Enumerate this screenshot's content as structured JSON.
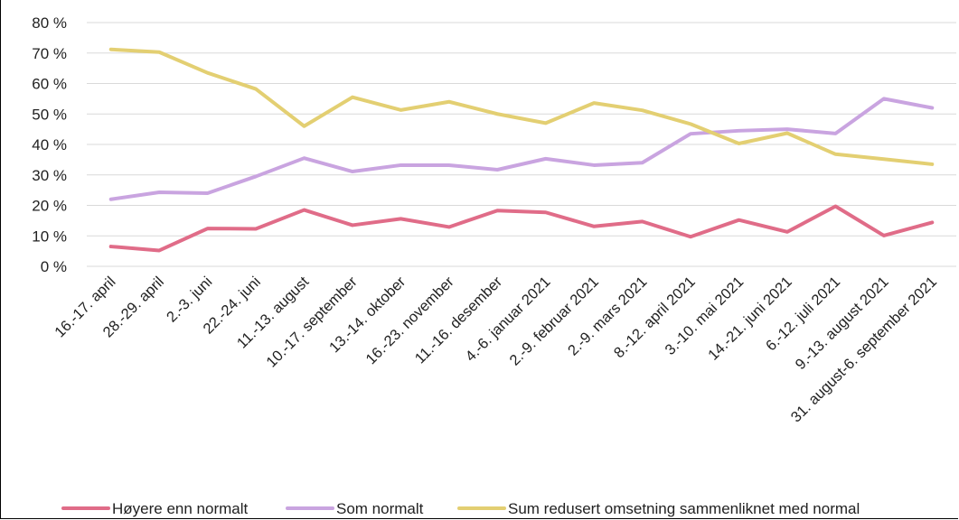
{
  "chart_data": {
    "type": "line",
    "title": "",
    "xlabel": "",
    "ylabel": "",
    "ylim": [
      0,
      80
    ],
    "yticks": [
      "0 %",
      "10 %",
      "20 %",
      "30 %",
      "40 %",
      "50 %",
      "60 %",
      "70 %",
      "80 %"
    ],
    "grid": true,
    "legend_position": "bottom",
    "categories": [
      "16.-17. april",
      "28.-29. april",
      "2.-3. juni",
      "22.-24. juni",
      "11.-13. august",
      "10.-17. september",
      "13.-14. oktober",
      "16.-23. november",
      "11.-16. desember",
      "4.-6. januar 2021",
      "2.-9. februar 2021",
      "2.-9. mars 2021",
      "8.-12. april 2021",
      "3.-10. mai 2021",
      "14.-21. juni 2021",
      "6.-12. juli 2021",
      "9.-13. august 2021",
      "31. august-6. september 2021"
    ],
    "series": [
      {
        "name": "Høyere enn normalt",
        "color": "#e06c88",
        "values": [
          6.5,
          5.2,
          12.4,
          12.3,
          18.5,
          13.5,
          15.6,
          12.9,
          18.3,
          17.7,
          13.1,
          14.7,
          9.7,
          15.2,
          11.3,
          19.7,
          10.1,
          14.4
        ]
      },
      {
        "name": "Som normalt",
        "color": "#c9a4e0",
        "values": [
          22.0,
          24.3,
          24.0,
          29.5,
          35.5,
          31.1,
          33.2,
          33.2,
          31.7,
          35.3,
          33.2,
          34.0,
          43.5,
          44.5,
          45.0,
          43.6,
          55.0,
          52.0
        ]
      },
      {
        "name": "Sum redusert omsetning sammenliknet med normal",
        "color": "#e3cf72",
        "values": [
          71.2,
          70.3,
          63.5,
          58.2,
          46.0,
          55.5,
          51.3,
          54.0,
          50.0,
          47.0,
          53.6,
          51.2,
          46.7,
          40.3,
          43.7,
          36.8,
          35.2,
          33.5
        ]
      }
    ]
  }
}
